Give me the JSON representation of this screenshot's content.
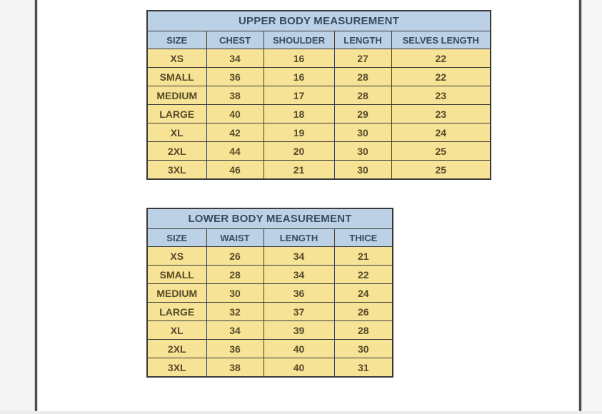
{
  "colors": {
    "header-bg": "#bcd0e6",
    "row-bg": "#f7e396",
    "header-text": "#374a61",
    "cell-text": "#574a28",
    "grid-border": "#3a3a3a",
    "page-edge-line": "#4f4f4f"
  },
  "tables": [
    {
      "title": "UPPER BODY MEASUREMENT",
      "columns": [
        "SIZE",
        "CHEST",
        "SHOULDER",
        "LENGTH",
        "SELVES LENGTH"
      ],
      "rows": [
        [
          "XS",
          "34",
          "16",
          "27",
          "22"
        ],
        [
          "SMALL",
          "36",
          "16",
          "28",
          "22"
        ],
        [
          "MEDIUM",
          "38",
          "17",
          "28",
          "23"
        ],
        [
          "LARGE",
          "40",
          "18",
          "29",
          "23"
        ],
        [
          "XL",
          "42",
          "19",
          "30",
          "24"
        ],
        [
          "2XL",
          "44",
          "20",
          "30",
          "25"
        ],
        [
          "3XL",
          "46",
          "21",
          "30",
          "25"
        ]
      ]
    },
    {
      "title": "LOWER BODY MEASUREMENT",
      "columns": [
        "SIZE",
        "WAIST",
        "LENGTH",
        "THICE"
      ],
      "rows": [
        [
          "XS",
          "26",
          "34",
          "21"
        ],
        [
          "SMALL",
          "28",
          "34",
          "22"
        ],
        [
          "MEDIUM",
          "30",
          "36",
          "24"
        ],
        [
          "LARGE",
          "32",
          "37",
          "26"
        ],
        [
          "XL",
          "34",
          "39",
          "28"
        ],
        [
          "2XL",
          "36",
          "40",
          "30"
        ],
        [
          "3XL",
          "38",
          "40",
          "31"
        ]
      ]
    }
  ]
}
